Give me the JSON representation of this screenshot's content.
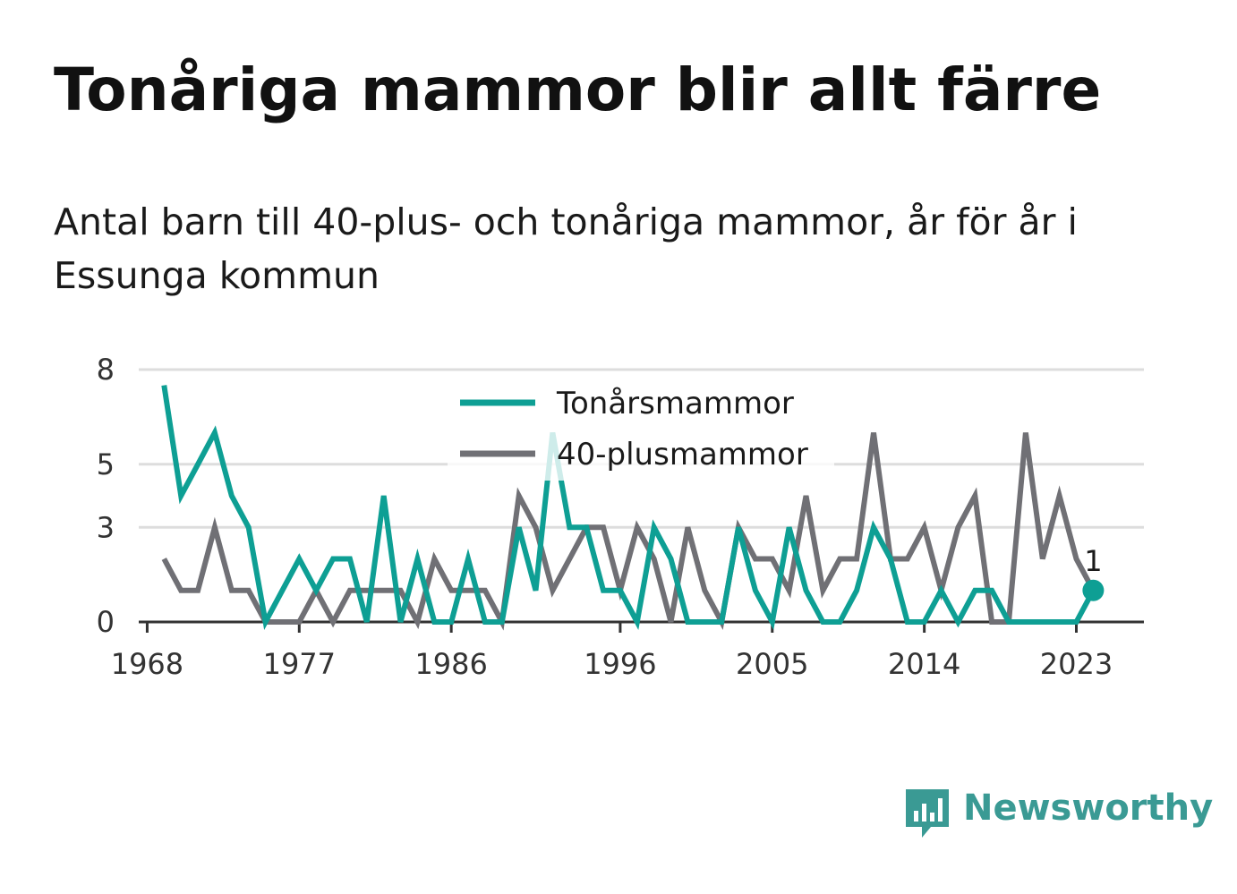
{
  "title": "Tonåriga mammor blir allt färre",
  "subtitle": "Antal barn till 40-plus- och tonåriga mammor, år för år i Essunga kommun",
  "brand": {
    "name": "Newsworthy",
    "icon": "newsworthy-logo-icon",
    "color": "#3a9a94"
  },
  "colors": {
    "teen": "#0e9f94",
    "forty": "#707075",
    "grid": "#dddddd",
    "axis": "#333333"
  },
  "chart_data": {
    "type": "line",
    "x": [
      1969,
      1970,
      1971,
      1972,
      1973,
      1974,
      1975,
      1976,
      1977,
      1978,
      1979,
      1980,
      1981,
      1982,
      1983,
      1984,
      1985,
      1986,
      1987,
      1988,
      1989,
      1990,
      1991,
      1992,
      1993,
      1994,
      1995,
      1996,
      1997,
      1998,
      1999,
      2000,
      2001,
      2002,
      2003,
      2004,
      2005,
      2006,
      2007,
      2008,
      2009,
      2010,
      2011,
      2012,
      2013,
      2014,
      2015,
      2016,
      2017,
      2018,
      2019,
      2020,
      2021,
      2022,
      2023,
      2024
    ],
    "series": [
      {
        "name": "Tonårsmammor",
        "values": [
          7.5,
          4,
          5,
          6,
          4,
          3,
          0,
          1,
          2,
          1,
          2,
          2,
          0,
          4,
          0,
          2,
          0,
          0,
          2,
          0,
          0,
          3,
          1,
          6,
          3,
          3,
          1,
          1,
          0,
          3,
          2,
          0,
          0,
          0,
          3,
          1,
          0,
          3,
          1,
          0,
          0,
          1,
          3,
          2,
          0,
          0,
          1,
          0,
          1,
          1,
          0,
          0,
          0,
          0,
          0,
          1
        ]
      },
      {
        "name": "40-plusmammor",
        "values": [
          2,
          1,
          1,
          3,
          1,
          1,
          0,
          0,
          0,
          1,
          0,
          1,
          1,
          1,
          1,
          0,
          2,
          1,
          1,
          1,
          0,
          4,
          3,
          1,
          2,
          3,
          3,
          1,
          3,
          2,
          0,
          3,
          1,
          0,
          3,
          2,
          2,
          1,
          4,
          1,
          2,
          2,
          6,
          2,
          2,
          3,
          1,
          3,
          4,
          0,
          0,
          6,
          2,
          4,
          2,
          1
        ]
      }
    ],
    "ylim": [
      0,
      8
    ],
    "yticks": [
      0,
      3,
      5,
      8
    ],
    "xticks": [
      1968,
      1977,
      1986,
      1996,
      2005,
      2014,
      2023
    ],
    "xlim": [
      1967.5,
      2027
    ],
    "last_value_label": "1",
    "legend_position": "top-center",
    "grid": true
  }
}
